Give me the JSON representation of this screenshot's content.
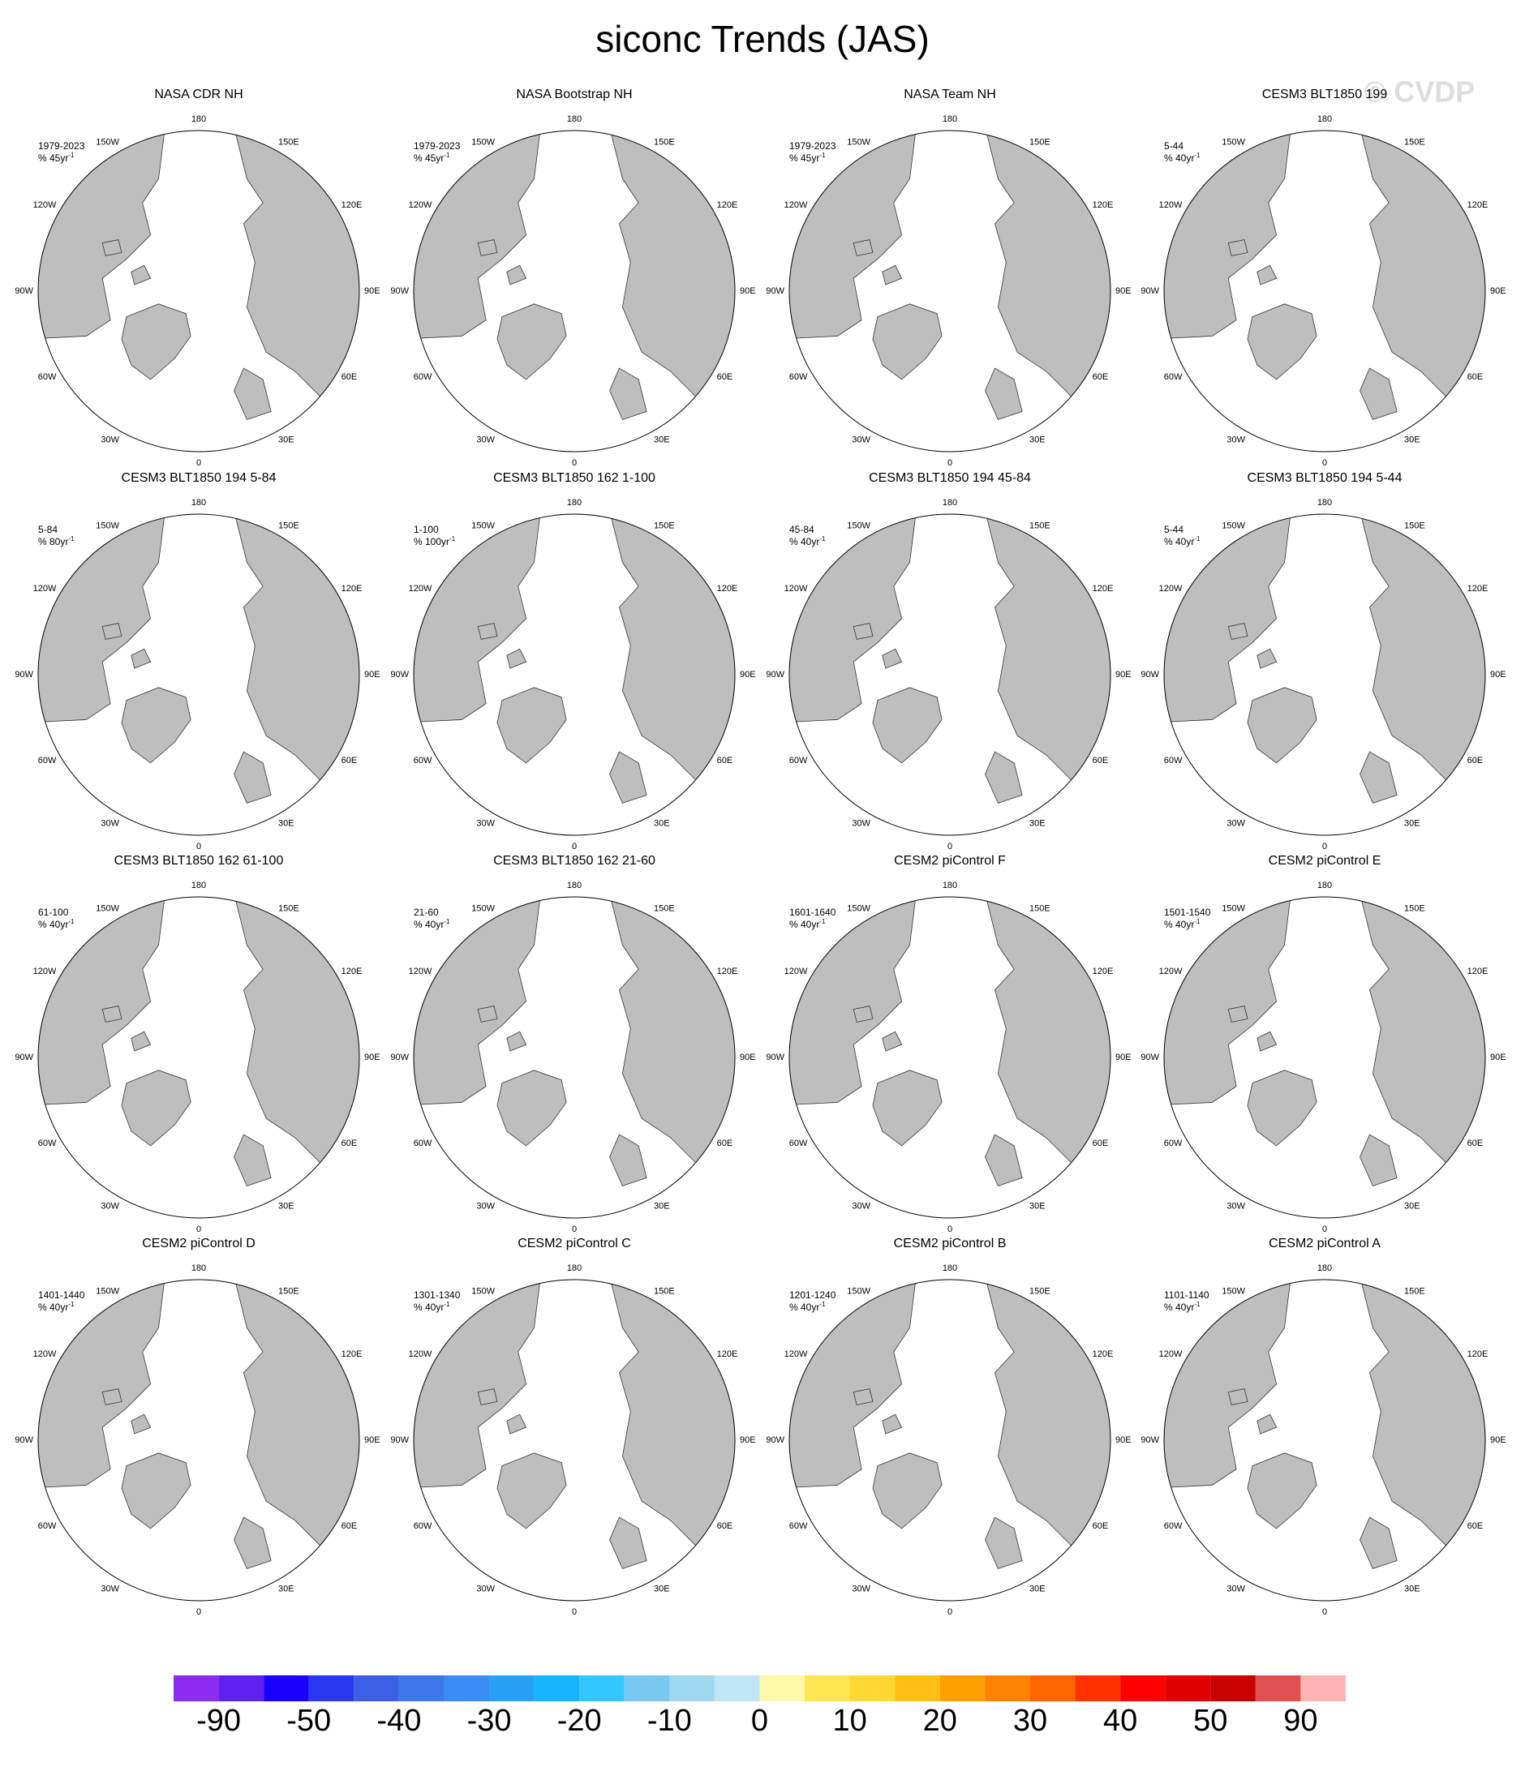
{
  "title": "siconc Trends (JAS)",
  "watermark": "© CVDP",
  "longitude_labels": [
    "180",
    "150E",
    "120E",
    "90E",
    "60E",
    "30E",
    "0",
    "30W",
    "60W",
    "90W",
    "120W",
    "150W"
  ],
  "unit_exponent": "-1",
  "panels": [
    {
      "title": "NASA CDR NH",
      "period": "1979-2023",
      "unit": "% 45yr"
    },
    {
      "title": "NASA Bootstrap NH",
      "period": "1979-2023",
      "unit": "% 45yr"
    },
    {
      "title": "NASA Team NH",
      "period": "1979-2023",
      "unit": "% 45yr"
    },
    {
      "title": "CESM3 BLT1850 199",
      "period": "5-44",
      "unit": "% 40yr"
    },
    {
      "title": "CESM3 BLT1850 194 5-84",
      "period": "5-84",
      "unit": "% 80yr"
    },
    {
      "title": "CESM3 BLT1850 162 1-100",
      "period": "1-100",
      "unit": "% 100yr"
    },
    {
      "title": "CESM3 BLT1850 194 45-84",
      "period": "45-84",
      "unit": "% 40yr"
    },
    {
      "title": "CESM3 BLT1850 194 5-44",
      "period": "5-44",
      "unit": "% 40yr"
    },
    {
      "title": "CESM3 BLT1850 162 61-100",
      "period": "61-100",
      "unit": "% 40yr"
    },
    {
      "title": "CESM3 BLT1850 162 21-60",
      "period": "21-60",
      "unit": "% 40yr"
    },
    {
      "title": "CESM2 piControl F",
      "period": "1601-1640",
      "unit": "% 40yr"
    },
    {
      "title": "CESM2 piControl E",
      "period": "1501-1540",
      "unit": "% 40yr"
    },
    {
      "title": "CESM2 piControl D",
      "period": "1401-1440",
      "unit": "% 40yr"
    },
    {
      "title": "CESM2 piControl C",
      "period": "1301-1340",
      "unit": "% 40yr"
    },
    {
      "title": "CESM2 piControl B",
      "period": "1201-1240",
      "unit": "% 40yr"
    },
    {
      "title": "CESM2 piControl A",
      "period": "1101-1140",
      "unit": "% 40yr"
    }
  ],
  "colorbar": {
    "colors": [
      "#8a2cf0",
      "#6020f0",
      "#1a00ff",
      "#2837f0",
      "#3c5fe6",
      "#3c78eb",
      "#3c8cf5",
      "#28a0f5",
      "#14b4ff",
      "#32c8ff",
      "#78c8f0",
      "#a0d7f0",
      "#bee6f5",
      "#fff8aa",
      "#ffe650",
      "#ffd732",
      "#ffbe14",
      "#ffa000",
      "#ff8200",
      "#ff6400",
      "#ff3200",
      "#ff0000",
      "#e10000",
      "#c80000",
      "#e15050",
      "#ffb4b4"
    ],
    "labels": [
      -90,
      -50,
      -40,
      -30,
      -20,
      -10,
      0,
      10,
      20,
      30,
      40,
      50,
      90
    ]
  }
}
